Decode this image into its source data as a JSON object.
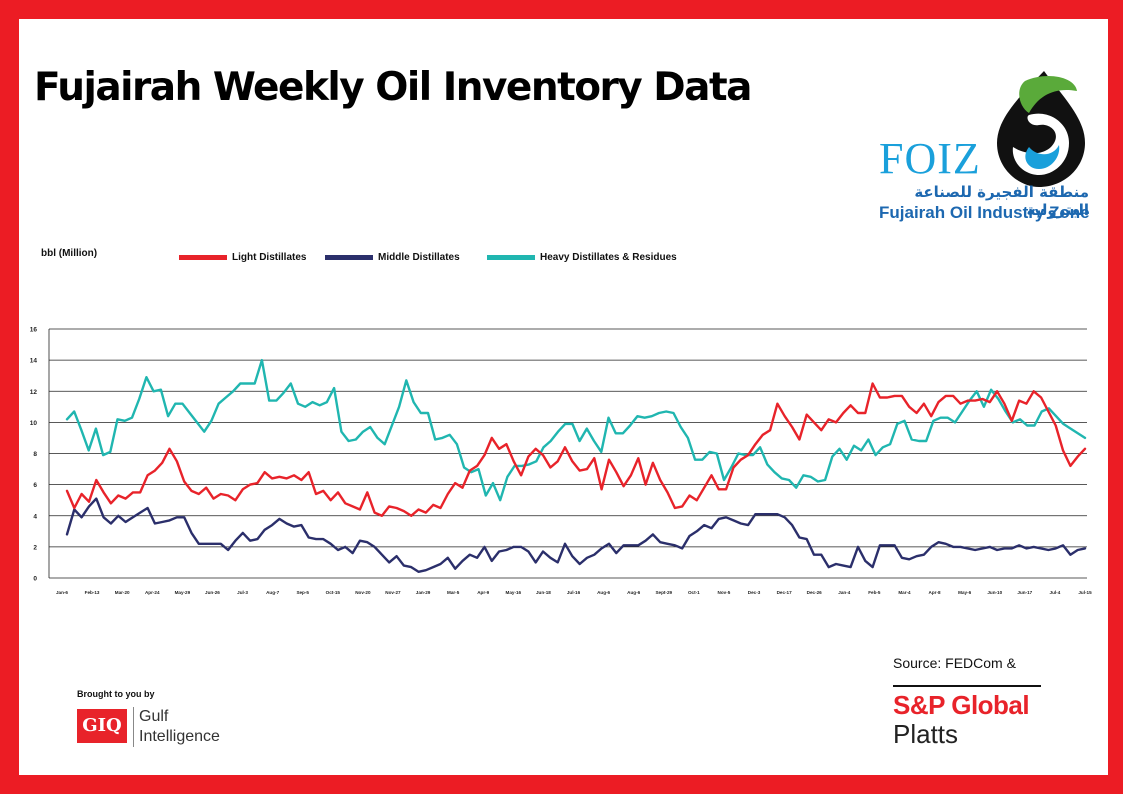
{
  "title": "Fujairah Weekly Oil Inventory Data",
  "logo": {
    "name": "FOIZ",
    "arabic": "منطقة الفجيرة للصناعة البترولية",
    "english": "Fujairah Oil Industry Zone",
    "colors": {
      "green": "#5aaa3a",
      "blue": "#1aa0db",
      "dark": "#111111"
    }
  },
  "source_label": "Source: FEDCom &",
  "sp": {
    "name": "S&P Global",
    "sub": "Platts"
  },
  "brought_by": "Brought to you by",
  "gulf": {
    "mark": "GIQ",
    "line1": "Gulf",
    "line2": "Intelligence"
  },
  "chart_data": {
    "type": "line",
    "ylabel": "bbl (Million)",
    "ylim": [
      0,
      16
    ],
    "yticks": [
      "0",
      "2",
      "4",
      "6",
      "8",
      "10",
      "12",
      "14",
      "16"
    ],
    "grid": "horizontal",
    "legend_position": "top-left",
    "xtick_labels": [
      "Jan-6",
      "Feb-13",
      "Mar-20",
      "Apr-24",
      "May-29",
      "Jun-26",
      "Jul-3",
      "Aug-7",
      "Sep-5",
      "Oct-15",
      "Nov-20",
      "Nov-27",
      "Jan-29",
      "Mar-5",
      "Apr-9",
      "May-16",
      "Jun-18",
      "Jul-16",
      "Aug-6",
      "Aug-6",
      "Sept-29",
      "Oct-1",
      "Nov-5",
      "Dec-3",
      "Dec-17",
      "Dec-26",
      "Jan-4",
      "Feb-5",
      "Mar-4",
      "Apr-8",
      "May-6",
      "Jun-10",
      "Jun-17",
      "Jul-4",
      "Jul-15"
    ],
    "series": [
      {
        "name": "Light Distillates",
        "color": "#e8232a",
        "values": [
          5.6,
          4.5,
          5.4,
          4.9,
          6.3,
          5.5,
          4.8,
          5.3,
          5.1,
          5.5,
          5.5,
          6.6,
          6.9,
          7.4,
          8.3,
          7.5,
          6.2,
          5.6,
          5.4,
          5.8,
          5.1,
          5.4,
          5.3,
          5.0,
          5.7,
          6.0,
          6.1,
          6.8,
          6.4,
          6.5,
          6.4,
          6.6,
          6.3,
          6.8,
          5.4,
          5.6,
          5.0,
          5.5,
          4.8,
          4.6,
          4.4,
          5.5,
          4.2,
          4.0,
          4.6,
          4.5,
          4.3,
          4.0,
          4.4,
          4.2,
          4.7,
          4.5,
          5.4,
          6.1,
          5.8,
          6.9,
          7.2,
          7.9,
          9.0,
          8.3,
          8.6,
          7.5,
          6.6,
          7.8,
          8.3,
          7.9,
          7.1,
          7.5,
          8.4,
          7.5,
          6.9,
          7.0,
          7.7,
          5.7,
          7.6,
          6.8,
          5.9,
          6.6,
          7.7,
          6.0,
          7.4,
          6.3,
          5.5,
          4.5,
          4.6,
          5.3,
          5.0,
          5.8,
          6.6,
          5.7,
          5.7,
          7.1,
          7.6,
          7.9,
          8.6,
          9.2,
          9.5,
          11.2,
          10.4,
          9.7,
          8.9,
          10.5,
          10.0,
          9.5,
          10.2,
          10.0,
          10.6,
          11.1,
          10.6,
          10.6,
          12.5,
          11.6,
          11.6,
          11.7,
          11.7,
          11.0,
          10.6,
          11.2,
          10.4,
          11.3,
          11.7,
          11.7,
          11.2,
          11.4,
          11.4,
          11.5,
          11.3,
          12.0,
          11.2,
          10.1,
          11.4,
          11.2,
          12.0,
          11.6,
          10.7,
          9.8,
          8.2,
          7.2,
          7.8,
          8.3
        ]
      },
      {
        "name": "Middle Distillates",
        "color": "#2b2f6b",
        "values": [
          2.8,
          4.4,
          3.9,
          4.6,
          5.1,
          3.9,
          3.5,
          4.0,
          3.6,
          3.9,
          4.2,
          4.5,
          3.5,
          3.6,
          3.7,
          3.9,
          3.9,
          2.9,
          2.2,
          2.2,
          2.2,
          2.2,
          1.8,
          2.4,
          2.9,
          2.4,
          2.5,
          3.1,
          3.4,
          3.8,
          3.5,
          3.3,
          3.4,
          2.6,
          2.5,
          2.5,
          2.2,
          1.8,
          2.0,
          1.6,
          2.4,
          2.3,
          2.0,
          1.5,
          1.0,
          1.4,
          0.8,
          0.7,
          0.4,
          0.5,
          0.7,
          0.9,
          1.3,
          0.6,
          1.1,
          1.5,
          1.3,
          2.0,
          1.1,
          1.7,
          1.8,
          2.0,
          2.0,
          1.7,
          1.0,
          1.7,
          1.3,
          1.0,
          2.2,
          1.4,
          0.9,
          1.3,
          1.5,
          1.9,
          2.2,
          1.6,
          2.1,
          2.1,
          2.1,
          2.4,
          2.8,
          2.3,
          2.2,
          2.1,
          1.9,
          2.7,
          3.0,
          3.4,
          3.2,
          3.8,
          3.9,
          3.7,
          3.5,
          3.4,
          4.1,
          4.1,
          4.1,
          4.1,
          3.9,
          3.4,
          2.6,
          2.5,
          1.5,
          1.5,
          0.7,
          0.9,
          0.8,
          0.7,
          2.0,
          1.1,
          0.7,
          2.1,
          2.1,
          2.1,
          1.3,
          1.2,
          1.4,
          1.5,
          2.0,
          2.3,
          2.2,
          2.0,
          2.0,
          1.9,
          1.8,
          1.9,
          2.0,
          1.8,
          1.9,
          1.9,
          2.1,
          1.9,
          2.0,
          1.9,
          1.8,
          1.9,
          2.1,
          1.5,
          1.8,
          1.9
        ]
      },
      {
        "name": "Heavy Distillates & Residues",
        "color": "#20b6b0",
        "values": [
          10.2,
          10.7,
          9.5,
          8.2,
          9.6,
          7.9,
          8.1,
          10.2,
          10.1,
          10.3,
          11.5,
          12.9,
          12.0,
          12.1,
          10.4,
          11.2,
          11.2,
          10.6,
          10.0,
          9.4,
          10.1,
          11.2,
          11.6,
          12.0,
          12.5,
          12.5,
          12.5,
          14.0,
          11.4,
          11.4,
          11.9,
          12.5,
          11.2,
          11.0,
          11.3,
          11.1,
          11.3,
          12.2,
          9.4,
          8.8,
          8.9,
          9.4,
          9.7,
          9.0,
          8.6,
          9.8,
          11.0,
          12.7,
          11.3,
          10.6,
          10.6,
          8.9,
          9.0,
          9.2,
          8.6,
          7.1,
          6.8,
          7.0,
          5.3,
          6.1,
          5.0,
          6.5,
          7.2,
          7.2,
          7.3,
          7.5,
          8.4,
          8.8,
          9.4,
          9.9,
          9.9,
          8.8,
          9.6,
          8.8,
          8.1,
          10.3,
          9.3,
          9.3,
          9.8,
          10.4,
          10.3,
          10.4,
          10.6,
          10.7,
          10.6,
          9.7,
          9.0,
          7.6,
          7.6,
          8.1,
          8.0,
          6.3,
          7.1,
          8.0,
          7.9,
          7.9,
          8.4,
          7.3,
          6.8,
          6.4,
          6.3,
          5.8,
          6.6,
          6.5,
          6.2,
          6.3,
          7.8,
          8.3,
          7.6,
          8.5,
          8.2,
          8.9,
          7.9,
          8.4,
          8.6,
          9.9,
          10.1,
          8.9,
          8.8,
          8.8,
          10.1,
          10.3,
          10.3,
          10.0,
          10.7,
          11.4,
          12.0,
          11.0,
          12.1,
          11.5,
          10.7,
          10.0,
          10.2,
          9.8,
          9.8,
          10.7,
          10.9,
          10.4,
          9.9,
          9.6,
          9.3,
          9.0
        ]
      }
    ]
  }
}
